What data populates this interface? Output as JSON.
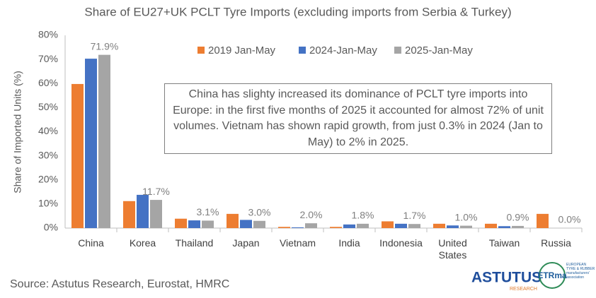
{
  "chart_data": {
    "type": "bar",
    "title": "Share of EU27+UK PCLT Tyre Imports (excluding imports from Serbia & Turkey)",
    "y_label": "Share of Imported Units (%)",
    "categories": [
      "China",
      "Korea",
      "Thailand",
      "Japan",
      "Vietnam",
      "India",
      "Indonesia",
      "United States",
      "Taiwan",
      "Russia"
    ],
    "series": [
      {
        "name": "2019 Jan-May",
        "color": "#ED7D31",
        "values": [
          59.8,
          11.2,
          3.9,
          5.9,
          0.5,
          0.5,
          2.8,
          1.8,
          1.8,
          5.9
        ]
      },
      {
        "name": "2024-Jan-May",
        "color": "#4472C4",
        "values": [
          70.3,
          13.8,
          3.2,
          3.4,
          0.3,
          1.5,
          1.8,
          1.1,
          0.8,
          0
        ]
      },
      {
        "name": "2025-Jan-May",
        "color": "#A5A5A5",
        "values": [
          71.9,
          11.7,
          3.1,
          3.0,
          2.0,
          1.8,
          1.7,
          1.0,
          0.9,
          0.0
        ],
        "value_labels": [
          "71.9%",
          "11.7%",
          "3.1%",
          "3.0%",
          "2.0%",
          "1.8%",
          "1.7%",
          "1.0%",
          "0.9%",
          "0.0%"
        ]
      }
    ],
    "ylim": [
      0,
      80
    ],
    "yticks": [
      {
        "value": 0,
        "label": "0%"
      },
      {
        "value": 10,
        "label": "10%"
      },
      {
        "value": 20,
        "label": "20%"
      },
      {
        "value": 30,
        "label": "30%"
      },
      {
        "value": 40,
        "label": "40%"
      },
      {
        "value": 50,
        "label": "50%"
      },
      {
        "value": 60,
        "label": "60%"
      },
      {
        "value": 70,
        "label": "70%"
      },
      {
        "value": 80,
        "label": "80%"
      }
    ],
    "grid": false,
    "legend": "top",
    "annotation": "China has slighty increased its dominance of PCLT tyre imports into Europe: in the first five months of 2025 it accounted for almost 72% of unit volumes. Vietnam has shown rapid growth, from just 0.3% in 2024 (Jan to May)  to 2% in 2025.",
    "source": "Source: Astutus Research, Eurostat, HMRC"
  },
  "logos": {
    "astutus": "ASTUTUS",
    "astutus_sub": "RESEARCH",
    "etrma": "ETRma",
    "etrma_sub": "EUROPEAN TYRE & RUBBER manufacturers' association"
  }
}
